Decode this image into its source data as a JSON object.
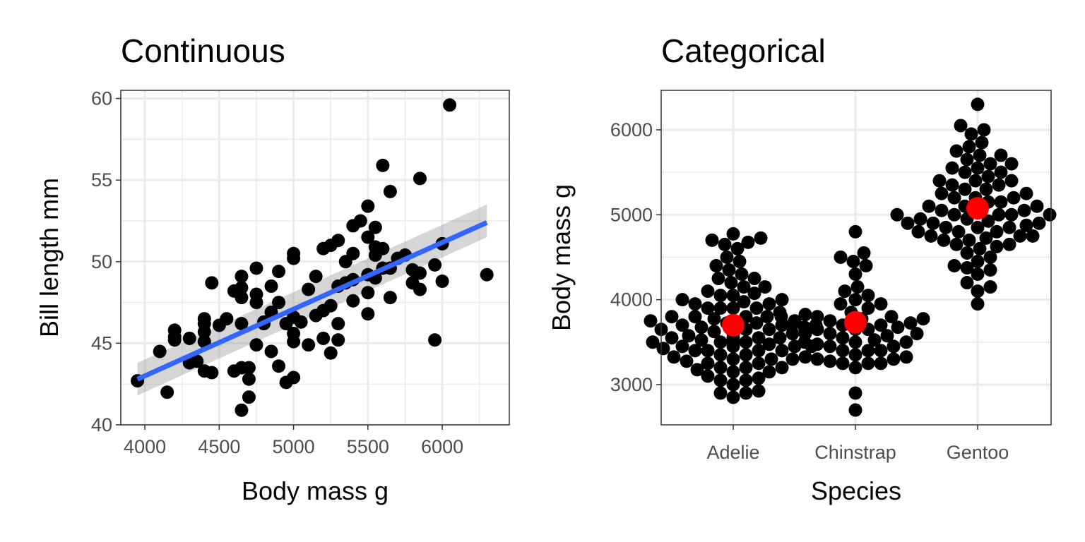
{
  "chart_data": [
    {
      "type": "scatter",
      "title": "Continuous",
      "xlabel": "Body mass g",
      "ylabel": "Bill length mm",
      "xlim": [
        3838,
        6451
      ],
      "ylim": [
        40,
        60.5
      ],
      "xticks": [
        4000,
        4500,
        5000,
        5500,
        6000
      ],
      "yticks": [
        40,
        45,
        50,
        55,
        60
      ],
      "grid": true,
      "point_color": "#000000",
      "points": [
        [
          3950,
          42.7
        ],
        [
          4100,
          44.5
        ],
        [
          4150,
          42.0
        ],
        [
          4200,
          45.8
        ],
        [
          4200,
          45.4
        ],
        [
          4200,
          45.2
        ],
        [
          4300,
          45.3
        ],
        [
          4300,
          43.8
        ],
        [
          4350,
          43.9
        ],
        [
          4400,
          46.2
        ],
        [
          4400,
          46.5
        ],
        [
          4400,
          45.7
        ],
        [
          4400,
          45.1
        ],
        [
          4400,
          43.3
        ],
        [
          4450,
          43.2
        ],
        [
          4450,
          48.7
        ],
        [
          4500,
          46.1
        ],
        [
          4550,
          46.5
        ],
        [
          4600,
          43.3
        ],
        [
          4600,
          48.2
        ],
        [
          4650,
          49.1
        ],
        [
          4650,
          48.4
        ],
        [
          4650,
          47.8
        ],
        [
          4650,
          40.9
        ],
        [
          4650,
          46.2
        ],
        [
          4650,
          43.5
        ],
        [
          4700,
          41.7
        ],
        [
          4700,
          42.8
        ],
        [
          4700,
          43.5
        ],
        [
          4750,
          47.5
        ],
        [
          4750,
          48.0
        ],
        [
          4750,
          49.6
        ],
        [
          4750,
          44.9
        ],
        [
          4800,
          46.2
        ],
        [
          4800,
          46.3
        ],
        [
          4850,
          48.5
        ],
        [
          4850,
          44.5
        ],
        [
          4850,
          46.9
        ],
        [
          4900,
          47.5
        ],
        [
          4900,
          43.6
        ],
        [
          4900,
          49.4
        ],
        [
          4950,
          42.6
        ],
        [
          4950,
          46.2
        ],
        [
          5000,
          42.9
        ],
        [
          5000,
          50.5
        ],
        [
          5000,
          50.2
        ],
        [
          5000,
          46.6
        ],
        [
          5000,
          45.6
        ],
        [
          5000,
          45.1
        ],
        [
          5050,
          46.3
        ],
        [
          5100,
          44.9
        ],
        [
          5100,
          48.3
        ],
        [
          5150,
          49.1
        ],
        [
          5150,
          46.7
        ],
        [
          5200,
          50.8
        ],
        [
          5200,
          47.0
        ],
        [
          5200,
          45.3
        ],
        [
          5250,
          51.0
        ],
        [
          5250,
          47.3
        ],
        [
          5250,
          44.4
        ],
        [
          5300,
          51.3
        ],
        [
          5300,
          48.5
        ],
        [
          5300,
          46.2
        ],
        [
          5300,
          45.2
        ],
        [
          5350,
          50.0
        ],
        [
          5350,
          48.7
        ],
        [
          5400,
          52.2
        ],
        [
          5400,
          50.5
        ],
        [
          5400,
          47.6
        ],
        [
          5400,
          48.9
        ],
        [
          5450,
          52.5
        ],
        [
          5500,
          53.4
        ],
        [
          5500,
          51.5
        ],
        [
          5500,
          49.2
        ],
        [
          5500,
          48.1
        ],
        [
          5500,
          46.8
        ],
        [
          5550,
          50.4
        ],
        [
          5550,
          52.1
        ],
        [
          5550,
          50.9
        ],
        [
          5550,
          49.0
        ],
        [
          5600,
          55.9
        ],
        [
          5600,
          50.8
        ],
        [
          5600,
          49.6
        ],
        [
          5650,
          54.3
        ],
        [
          5650,
          47.8
        ],
        [
          5650,
          49.6
        ],
        [
          5700,
          50.2
        ],
        [
          5750,
          50.4
        ],
        [
          5800,
          49.5
        ],
        [
          5800,
          48.7
        ],
        [
          5850,
          55.1
        ],
        [
          5850,
          49.3
        ],
        [
          5850,
          48.3
        ],
        [
          5950,
          49.8
        ],
        [
          5950,
          45.2
        ],
        [
          6000,
          51.1
        ],
        [
          6000,
          48.8
        ],
        [
          6050,
          59.6
        ],
        [
          6300,
          49.2
        ]
      ],
      "fit": {
        "method": "lm",
        "color": "#3366FF",
        "x": [
          3950,
          6300
        ],
        "y": [
          42.8,
          52.4
        ],
        "se_band": [
          [
            41.8,
            43.8
          ],
          [
            51.5,
            53.5
          ]
        ]
      }
    },
    {
      "type": "scatter",
      "subtype": "beeswarm",
      "title": "Categorical",
      "xlabel": "Species",
      "ylabel": "Body mass g",
      "categories": [
        "Adelie",
        "Chinstrap",
        "Gentoo"
      ],
      "ylim": [
        2526,
        6465
      ],
      "yticks": [
        3000,
        4000,
        5000,
        6000
      ],
      "grid": true,
      "point_color": "#000000",
      "mean_color": "#FF0000",
      "means": [
        3700,
        3733,
        5076
      ],
      "series": [
        {
          "name": "Adelie",
          "values": [
            2850,
            2900,
            2900,
            2925,
            3000,
            3050,
            3050,
            3075,
            3100,
            3150,
            3150,
            3175,
            3200,
            3200,
            3200,
            3250,
            3250,
            3275,
            3300,
            3300,
            3300,
            3325,
            3325,
            3350,
            3350,
            3400,
            3400,
            3400,
            3400,
            3425,
            3450,
            3450,
            3450,
            3450,
            3475,
            3500,
            3500,
            3500,
            3500,
            3525,
            3525,
            3550,
            3550,
            3550,
            3550,
            3575,
            3600,
            3600,
            3600,
            3625,
            3650,
            3650,
            3650,
            3675,
            3700,
            3700,
            3700,
            3725,
            3725,
            3750,
            3750,
            3750,
            3775,
            3800,
            3800,
            3800,
            3800,
            3825,
            3850,
            3900,
            3900,
            3900,
            3900,
            3950,
            3950,
            3975,
            4000,
            4000,
            4050,
            4050,
            4075,
            4100,
            4150,
            4150,
            4200,
            4250,
            4250,
            4300,
            4350,
            4400,
            4450,
            4500,
            4600,
            4650,
            4675,
            4700,
            4725,
            4775
          ]
        },
        {
          "name": "Chinstrap",
          "values": [
            2700,
            2900,
            3200,
            3250,
            3250,
            3250,
            3275,
            3300,
            3300,
            3325,
            3350,
            3400,
            3400,
            3400,
            3450,
            3450,
            3475,
            3500,
            3500,
            3500,
            3525,
            3550,
            3575,
            3600,
            3600,
            3650,
            3650,
            3650,
            3675,
            3675,
            3700,
            3700,
            3700,
            3725,
            3750,
            3775,
            3775,
            3800,
            3800,
            3800,
            3850,
            3900,
            3950,
            3950,
            4000,
            4050,
            4100,
            4150,
            4300,
            4400,
            4450,
            4500,
            4550,
            4800
          ]
        },
        {
          "name": "Gentoo",
          "values": [
            3950,
            4100,
            4150,
            4200,
            4300,
            4350,
            4375,
            4400,
            4450,
            4500,
            4550,
            4600,
            4625,
            4650,
            4650,
            4700,
            4700,
            4725,
            4750,
            4750,
            4750,
            4800,
            4800,
            4800,
            4850,
            4850,
            4850,
            4875,
            4900,
            4900,
            4900,
            4925,
            4950,
            4950,
            5000,
            5000,
            5000,
            5000,
            5000,
            5050,
            5050,
            5050,
            5100,
            5100,
            5100,
            5150,
            5150,
            5200,
            5200,
            5200,
            5250,
            5250,
            5300,
            5300,
            5350,
            5350,
            5400,
            5400,
            5400,
            5450,
            5500,
            5500,
            5550,
            5550,
            5600,
            5600,
            5650,
            5700,
            5700,
            5750,
            5800,
            5850,
            5950,
            6000,
            6050,
            6300
          ]
        }
      ]
    }
  ]
}
